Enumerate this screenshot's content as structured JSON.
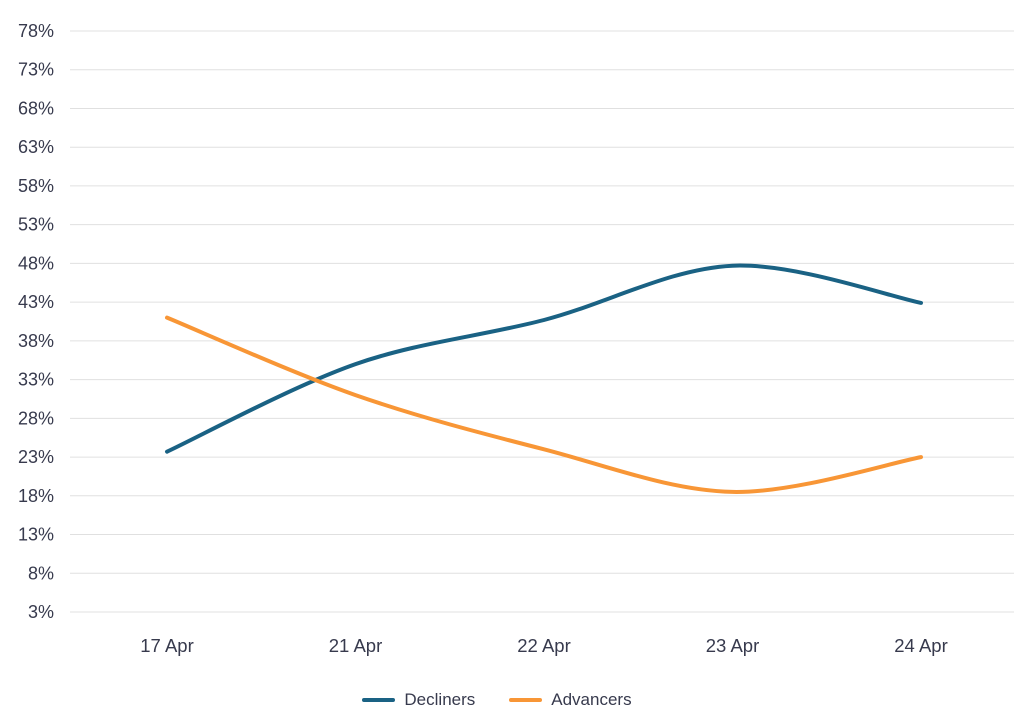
{
  "chart_data": {
    "type": "line",
    "title": "",
    "xlabel": "",
    "ylabel": "",
    "categories": [
      "17 Apr",
      "21 Apr",
      "22 Apr",
      "23 Apr",
      "24 Apr"
    ],
    "series": [
      {
        "name": "Decliners",
        "color": "#1a6284",
        "values": [
          23.7,
          35.0,
          40.7,
          47.7,
          42.9
        ]
      },
      {
        "name": "Advancers",
        "color": "#f89636",
        "values": [
          41.0,
          31.0,
          24.0,
          18.5,
          23.0
        ]
      }
    ],
    "y_ticks": [
      "78%",
      "73%",
      "68%",
      "63%",
      "58%",
      "53%",
      "48%",
      "43%",
      "38%",
      "33%",
      "28%",
      "23%",
      "18%",
      "13%",
      "8%",
      "3%"
    ],
    "ylim": [
      3,
      78
    ],
    "grid": true,
    "legend_position": "bottom",
    "curve": "smooth",
    "text_color": "#373a4d",
    "grid_color": "#e0e0e0",
    "background": "#ffffff"
  }
}
